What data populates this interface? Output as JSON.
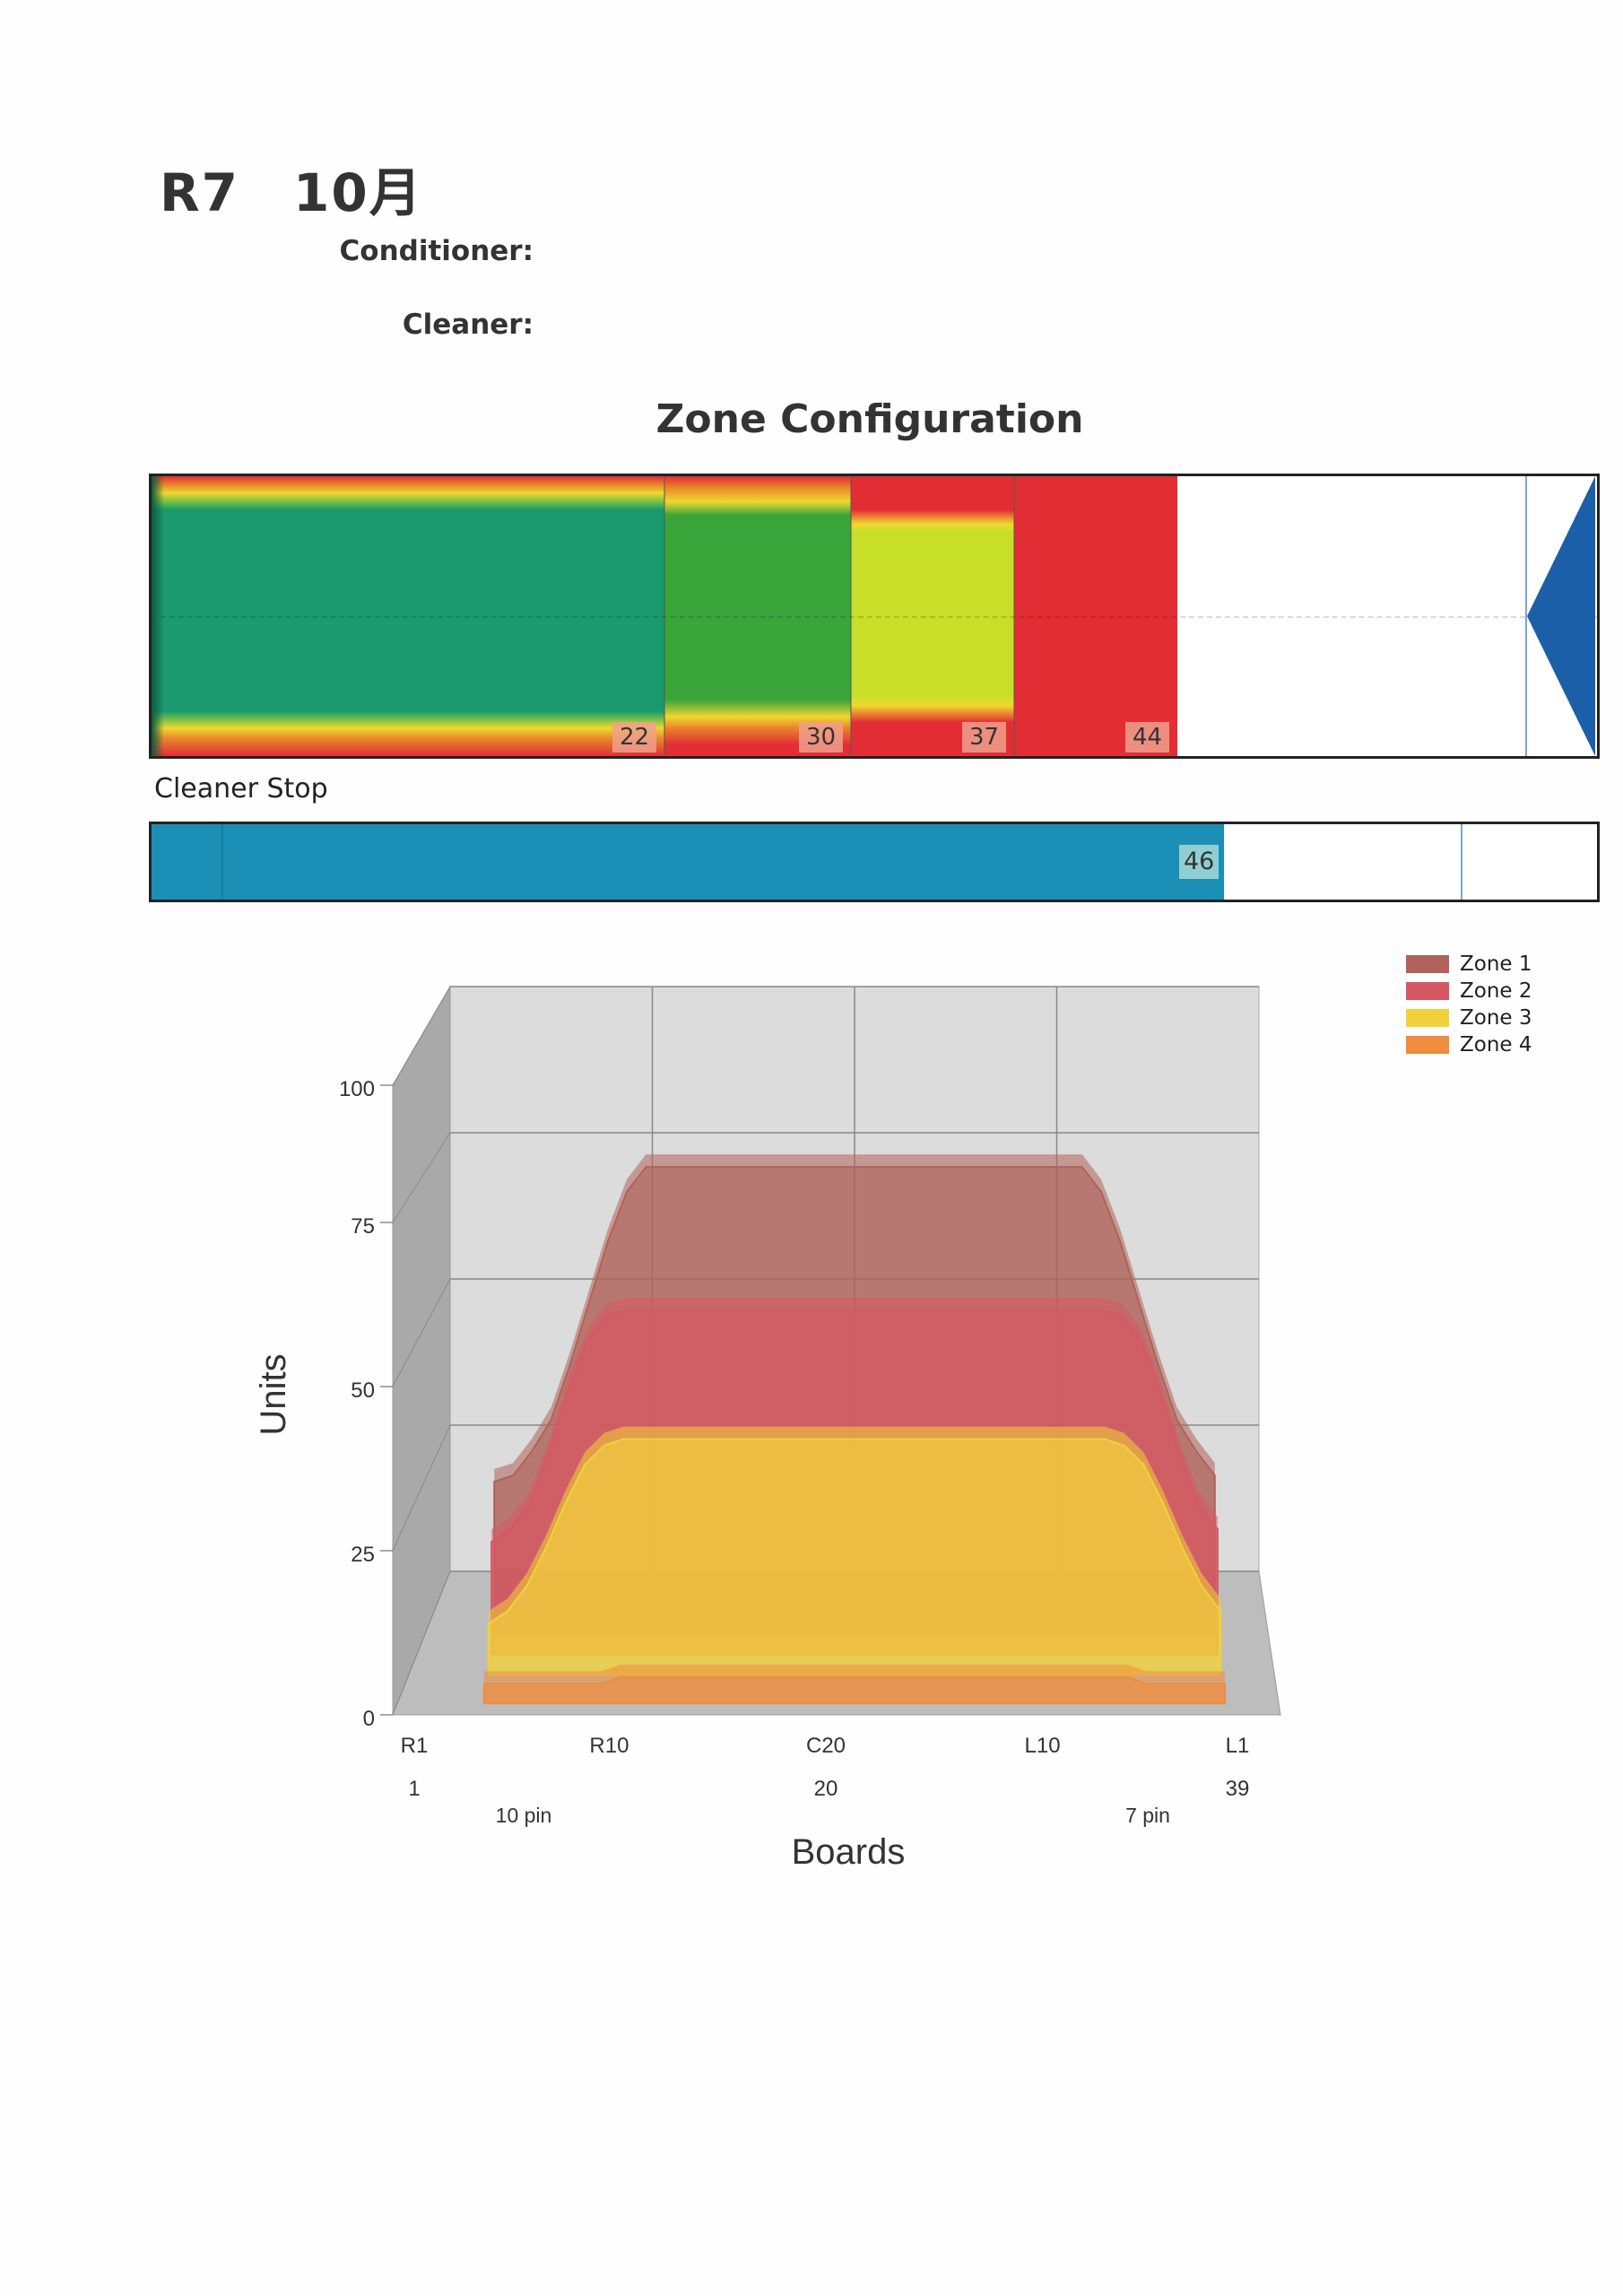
{
  "header": {
    "title": "R7　10月",
    "conditioner_label": "Conditioner:",
    "cleaner_label": "Cleaner:"
  },
  "zone_configuration": {
    "title": "Zone Configuration",
    "total_length": 62,
    "zone_ends": [
      22,
      30,
      37,
      44
    ],
    "marks": [
      "22",
      "30",
      "37",
      "44"
    ],
    "colors": [
      "#1a9a6e",
      "#3aa53b",
      "#c8df2a",
      "#e32d35"
    ]
  },
  "cleaner_stop": {
    "label": "Cleaner Stop",
    "value": 46,
    "value_label": "46",
    "color": "#1b8fb5"
  },
  "chart_data": {
    "type": "area",
    "xlabel": "Boards",
    "ylabel": "Units",
    "ylim": [
      0,
      100
    ],
    "yticks": [
      "100",
      "75",
      "50",
      "25",
      "0"
    ],
    "board_labels": [
      "R1",
      "R10",
      "C20",
      "L10",
      "L1"
    ],
    "board_numbers": [
      "1",
      "20",
      "39"
    ],
    "pin_labels": [
      "10 pin",
      "7 pin"
    ],
    "grid": true,
    "legend_position": "top-right",
    "x": [
      1,
      2,
      3,
      4,
      5,
      6,
      7,
      8,
      9,
      10,
      11,
      12,
      13,
      14,
      15,
      16,
      17,
      18,
      19,
      20,
      21,
      22,
      23,
      24,
      25,
      26,
      27,
      28,
      29,
      30,
      31,
      32,
      33,
      34,
      35,
      36,
      37,
      38,
      39
    ],
    "series": [
      {
        "name": "Zone 1",
        "color": "#b0625a",
        "values": [
          25,
          26,
          30,
          35,
          44,
          54,
          64,
          72,
          76,
          76,
          76,
          76,
          76,
          76,
          76,
          76,
          76,
          76,
          76,
          76,
          76,
          76,
          76,
          76,
          76,
          76,
          76,
          76,
          76,
          76,
          76,
          76,
          72,
          64,
          54,
          44,
          35,
          30,
          26
        ]
      },
      {
        "name": "Zone 2",
        "color": "#d55863",
        "values": [
          18,
          20,
          24,
          32,
          42,
          50,
          54,
          55,
          55,
          55,
          55,
          55,
          55,
          55,
          55,
          55,
          55,
          55,
          55,
          55,
          55,
          55,
          55,
          55,
          55,
          55,
          55,
          55,
          55,
          55,
          55,
          55,
          55,
          54,
          50,
          42,
          32,
          24,
          20
        ]
      },
      {
        "name": "Zone 3",
        "color": "#f1d23a",
        "values": [
          8,
          10,
          14,
          20,
          27,
          33,
          36,
          37,
          37,
          37,
          37,
          37,
          37,
          37,
          37,
          37,
          37,
          37,
          37,
          37,
          37,
          37,
          37,
          37,
          37,
          37,
          37,
          37,
          37,
          37,
          37,
          37,
          37,
          36,
          33,
          27,
          20,
          14,
          10
        ]
      },
      {
        "name": "Zone 4",
        "color": "#ef8c3e",
        "values": [
          3,
          3,
          3,
          3,
          3,
          3,
          3,
          4,
          4,
          4,
          4,
          4,
          4,
          4,
          4,
          4,
          4,
          4,
          4,
          4,
          4,
          4,
          4,
          4,
          4,
          4,
          4,
          4,
          4,
          4,
          4,
          4,
          4,
          4,
          3,
          3,
          3,
          3,
          3
        ]
      }
    ]
  }
}
